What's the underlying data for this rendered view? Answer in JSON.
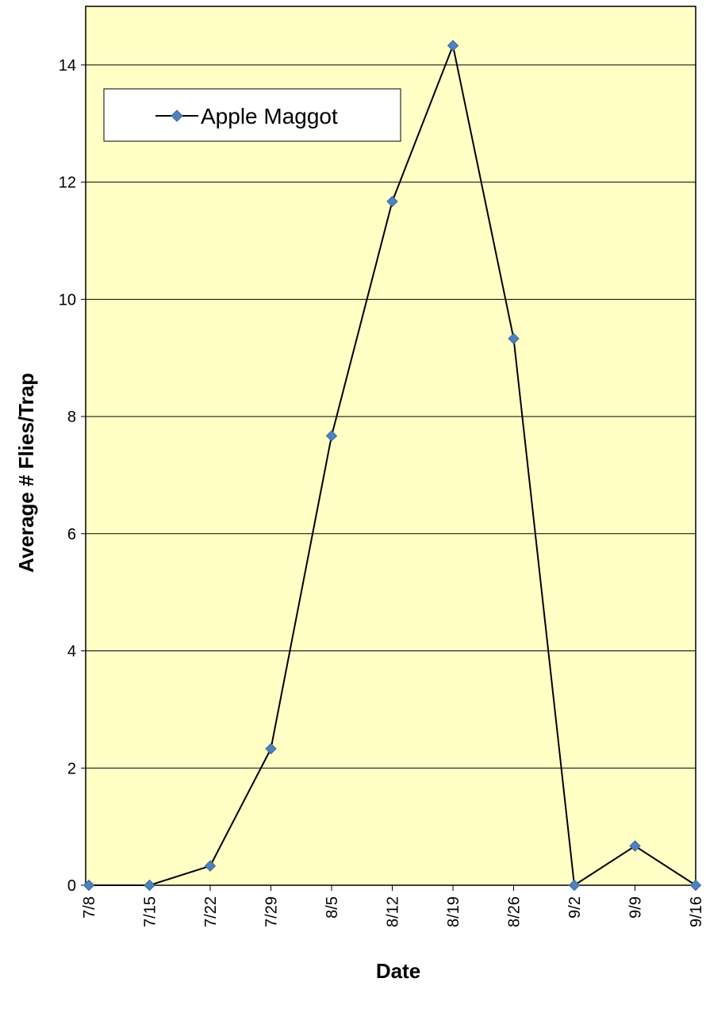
{
  "chart_data": {
    "type": "line",
    "title": "",
    "xlabel": "Date",
    "ylabel": "Average # Flies/Trap",
    "categories": [
      "7/8",
      "7/15",
      "7/22",
      "7/29",
      "8/5",
      "8/12",
      "8/19",
      "8/26",
      "9/2",
      "9/9",
      "9/16"
    ],
    "series": [
      {
        "name": "Apple Maggot",
        "values": [
          0,
          0,
          0.33,
          2.33,
          7.67,
          11.67,
          14.33,
          9.33,
          0,
          0.67,
          0
        ],
        "line_color": "#000000",
        "marker_color": "#4F81BD",
        "marker": "diamond"
      }
    ],
    "ylim": [
      0,
      15
    ],
    "yticks": [
      0,
      2,
      4,
      6,
      8,
      10,
      12,
      14
    ],
    "grid": true,
    "legend_position": "top-left",
    "plot_background": "#FFFFC6"
  }
}
